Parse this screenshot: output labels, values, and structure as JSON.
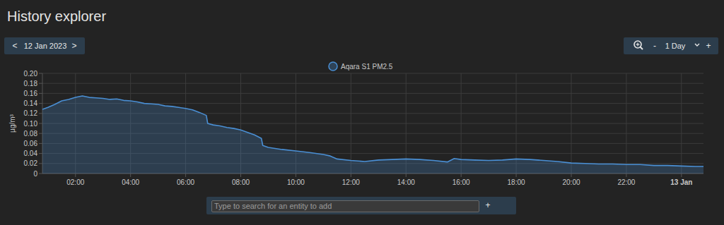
{
  "page": {
    "title": "History explorer",
    "date": "12 Jan 2023",
    "prev": "<",
    "next": ">",
    "zoom_out": "-",
    "range": "1 Day",
    "zoom_in": "+",
    "search_placeholder": "Type to search for an entity to add",
    "add": "+"
  },
  "chart_data": {
    "type": "area",
    "y_label": "µg/m³",
    "x": [
      0.8,
      1,
      1.25,
      1.5,
      1.75,
      2,
      2.25,
      2.5,
      2.75,
      3,
      3.25,
      3.5,
      3.75,
      4,
      4.25,
      4.5,
      4.75,
      5,
      5.25,
      5.5,
      5.75,
      6,
      6.25,
      6.5,
      6.75,
      6.8,
      7,
      7.25,
      7.5,
      7.75,
      8,
      8.25,
      8.5,
      8.75,
      8.8,
      9,
      9.5,
      10,
      10.5,
      11,
      11.25,
      11.5,
      12,
      12.5,
      13,
      13.5,
      14,
      14.5,
      15,
      15.5,
      15.75,
      16,
      16.5,
      17,
      17.5,
      18,
      18.5,
      19,
      19.5,
      20,
      20.5,
      21,
      21.5,
      22,
      22.5,
      23,
      23.5,
      24,
      24.5,
      24.8
    ],
    "series": [
      {
        "name": "Aqara S1 PM2.5",
        "color": "#4a8fd4",
        "values": [
          0.128,
          0.132,
          0.138,
          0.145,
          0.148,
          0.152,
          0.155,
          0.152,
          0.151,
          0.15,
          0.148,
          0.149,
          0.146,
          0.145,
          0.143,
          0.14,
          0.139,
          0.138,
          0.135,
          0.134,
          0.132,
          0.13,
          0.127,
          0.122,
          0.116,
          0.1,
          0.097,
          0.095,
          0.092,
          0.09,
          0.087,
          0.082,
          0.077,
          0.07,
          0.056,
          0.052,
          0.048,
          0.045,
          0.042,
          0.038,
          0.035,
          0.029,
          0.026,
          0.024,
          0.027,
          0.028,
          0.029,
          0.028,
          0.026,
          0.023,
          0.03,
          0.028,
          0.027,
          0.026,
          0.027,
          0.029,
          0.028,
          0.026,
          0.024,
          0.021,
          0.02,
          0.019,
          0.019,
          0.018,
          0.018,
          0.016,
          0.016,
          0.015,
          0.014,
          0.014
        ]
      }
    ],
    "xlim": [
      0.8,
      24.8
    ],
    "xticks": [
      {
        "value": 2,
        "label": "02:00"
      },
      {
        "value": 4,
        "label": "04:00"
      },
      {
        "value": 6,
        "label": "06:00"
      },
      {
        "value": 8,
        "label": "08:00"
      },
      {
        "value": 10,
        "label": "10:00"
      },
      {
        "value": 12,
        "label": "12:00"
      },
      {
        "value": 14,
        "label": "14:00"
      },
      {
        "value": 16,
        "label": "16:00"
      },
      {
        "value": 18,
        "label": "18:00"
      },
      {
        "value": 20,
        "label": "20:00"
      },
      {
        "value": 22,
        "label": "22:00"
      },
      {
        "value": 24,
        "label": "13 Jan"
      }
    ],
    "ylim": [
      0,
      0.2
    ],
    "yticks": [
      0,
      0.02,
      0.04,
      0.06,
      0.08,
      {
        "value": 0.1,
        "label": "0.10"
      },
      0.12,
      0.14,
      0.16,
      0.18,
      {
        "value": 0.2,
        "label": "0.20"
      }
    ],
    "grid": true,
    "legend": "top"
  }
}
